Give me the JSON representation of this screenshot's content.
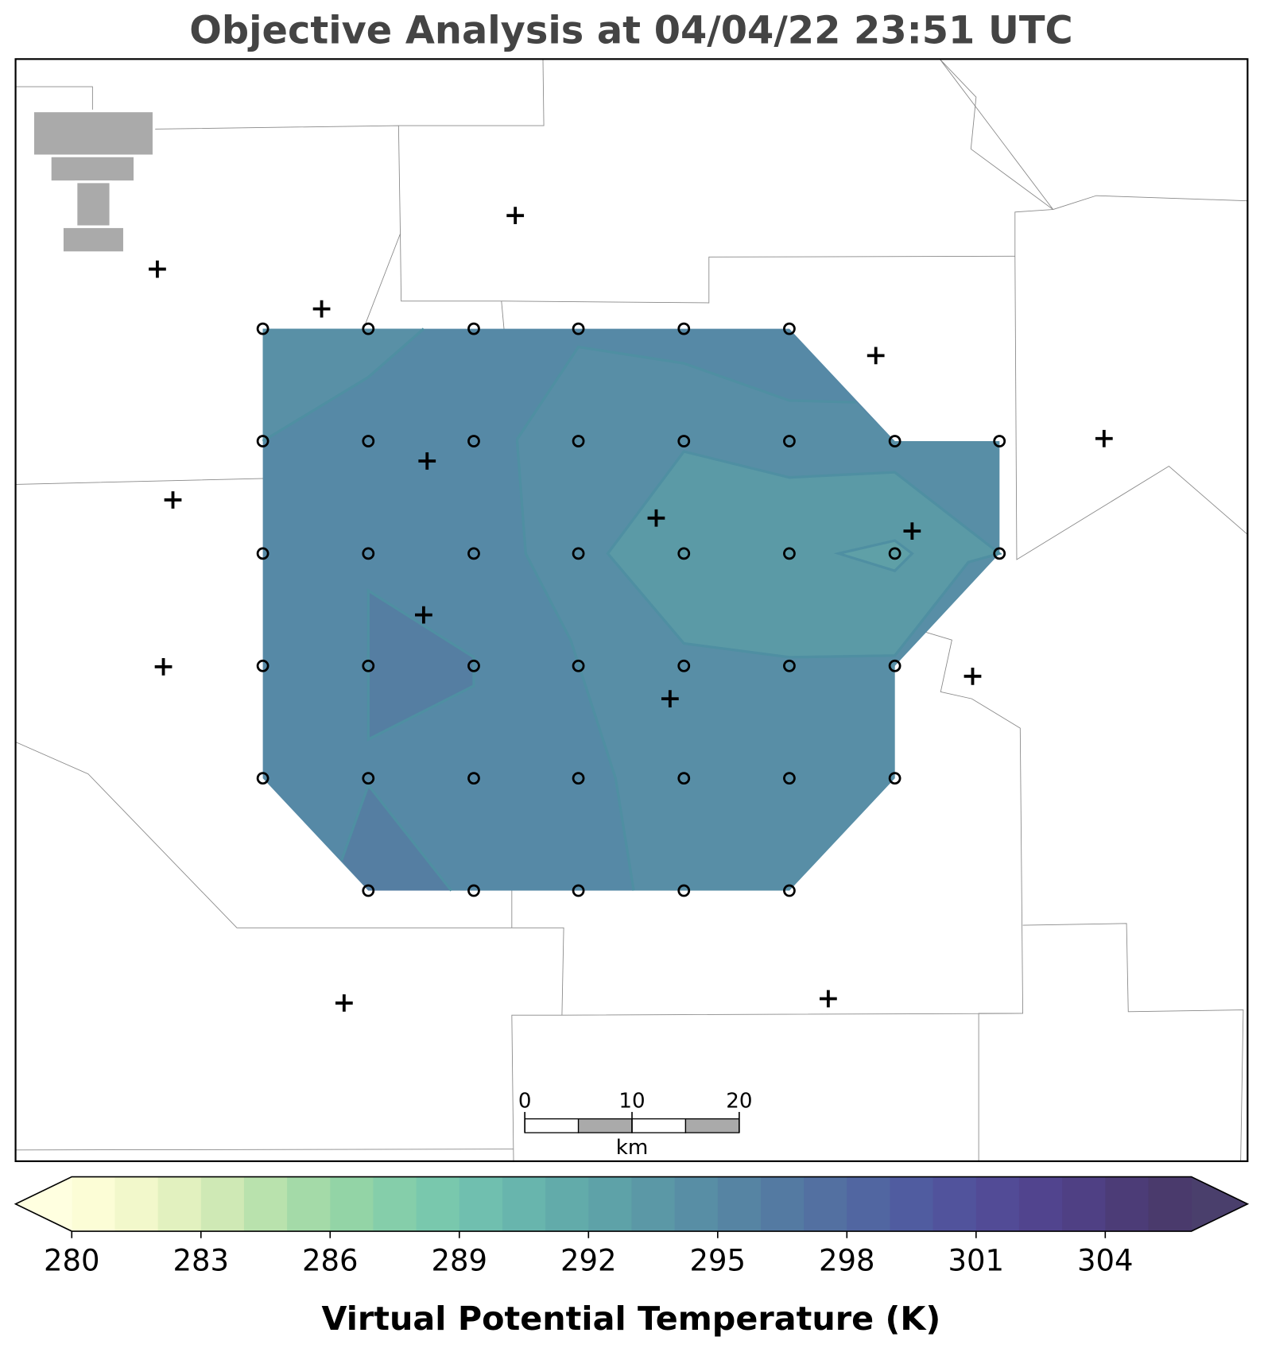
{
  "title": "Objective Analysis at 04/04/22 23:51 UTC",
  "colorbar": {
    "label": "Virtual Potential Temperature (K)",
    "levels": [
      280,
      281,
      282,
      283,
      284,
      285,
      286,
      287,
      288,
      289,
      290,
      291,
      292,
      293,
      294,
      295,
      296,
      297,
      298,
      299,
      300,
      301,
      302,
      303,
      304,
      305,
      306
    ],
    "ticks": [
      280,
      283,
      286,
      289,
      292,
      295,
      298,
      301,
      304
    ],
    "colors": [
      "#fcfdd6",
      "#f2f8cb",
      "#e2f1bf",
      "#cfe9b5",
      "#b9e2ad",
      "#a4daa8",
      "#93d4a6",
      "#85ceaa",
      "#79c8ad",
      "#70bfaf",
      "#68b5ad",
      "#62abaa",
      "#5ea2a8",
      "#5b98a6",
      "#588ea5",
      "#5684a3",
      "#547aa2",
      "#5370a1",
      "#5166a1",
      "#505ca0",
      "#51539c",
      "#524b96",
      "#51448e",
      "#4f4084",
      "#4c3c77",
      "#4a3a6c"
    ],
    "under_color": "#ffffe0",
    "over_color": "#4a3f6c"
  },
  "scale_bar": {
    "ticks": [
      0,
      10,
      20
    ],
    "unit": "km"
  }
}
